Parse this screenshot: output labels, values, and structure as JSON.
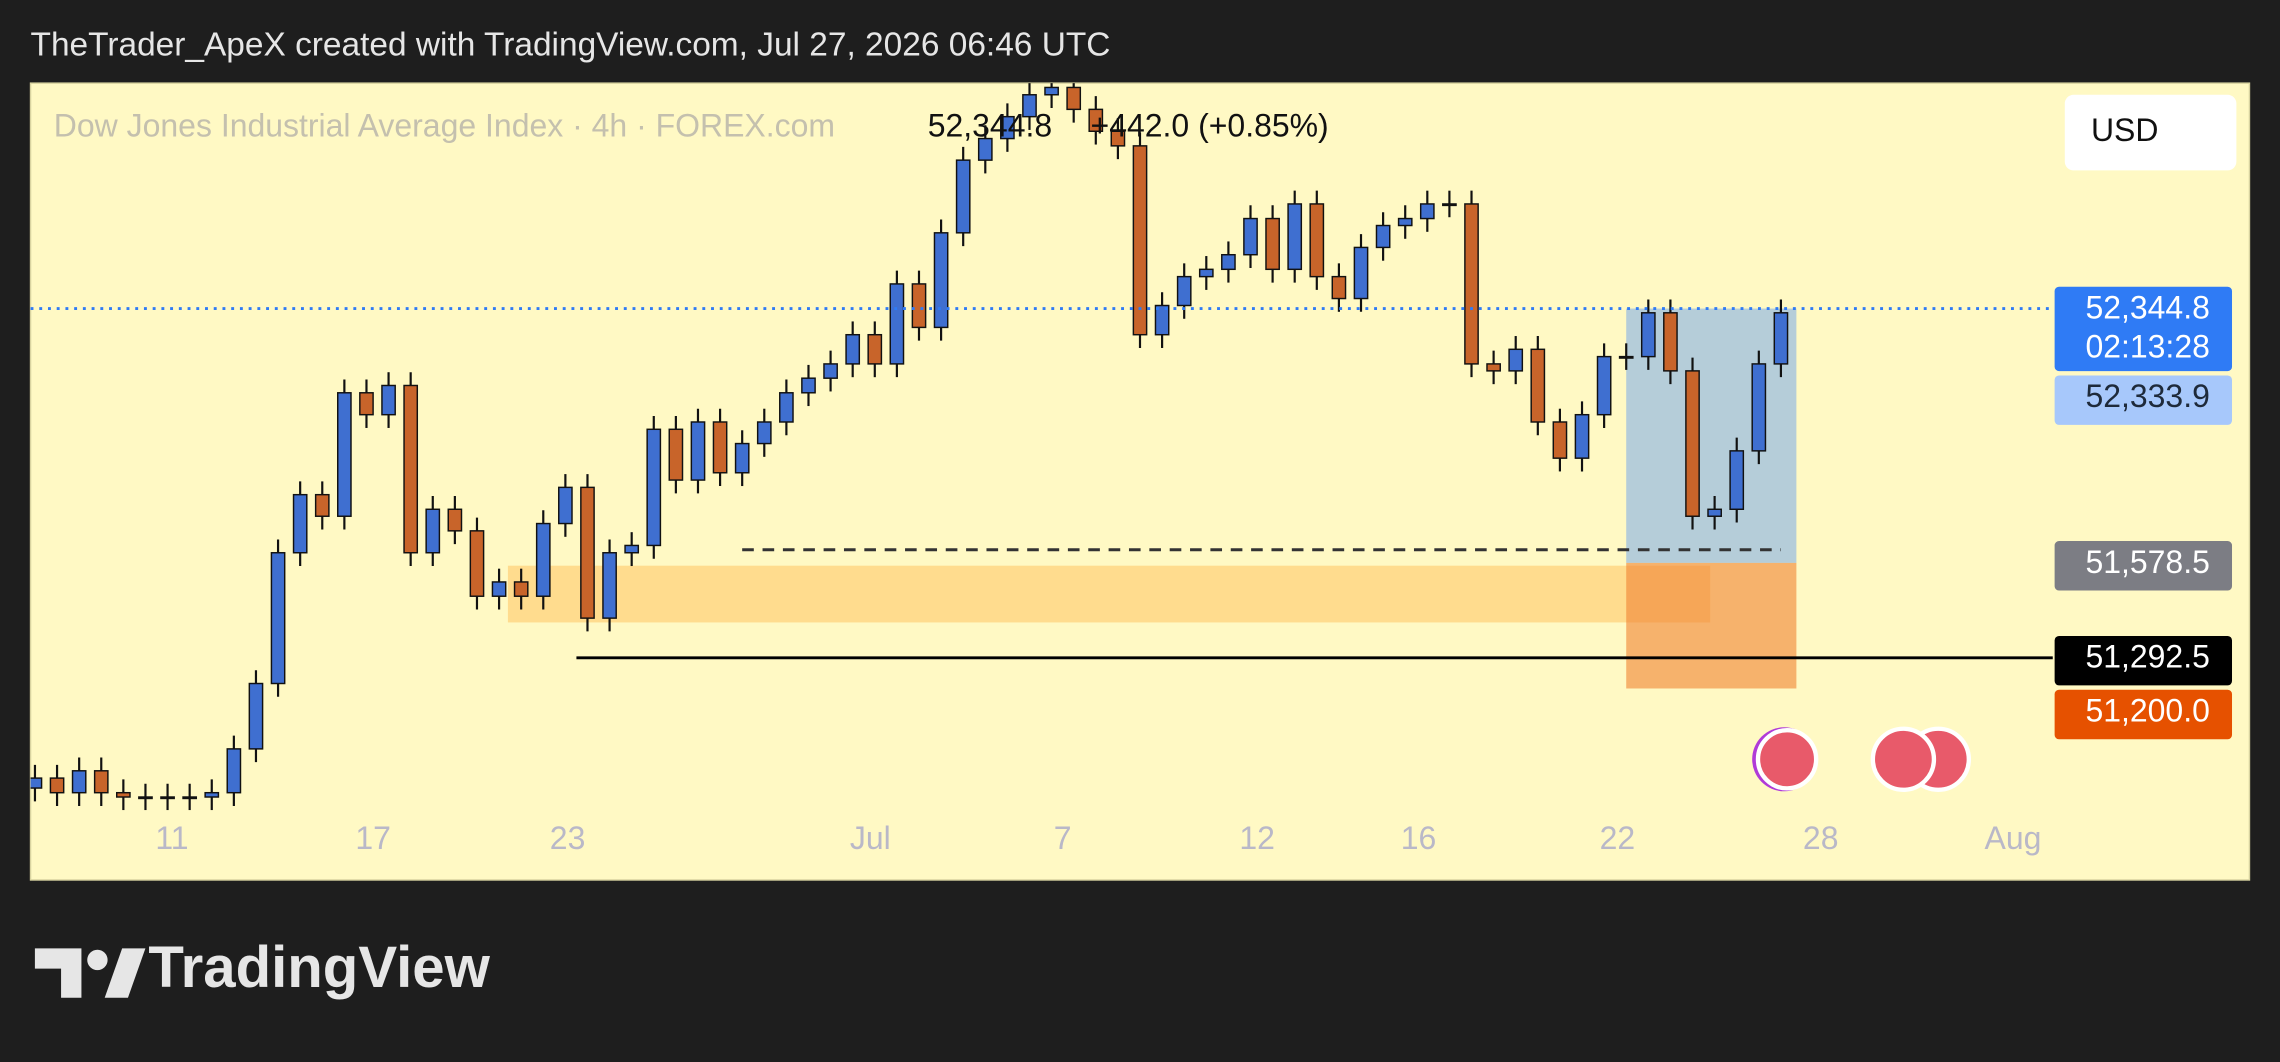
{
  "header": {
    "text": "TheTrader_ApeX created with TradingView.com, Jul 27, 2026 06:46 UTC"
  },
  "logo": "TradingView",
  "currency_button": "USD",
  "chart_data": {
    "type": "candlestick",
    "title": "Dow Jones Industrial Average Index · 4h · FOREX.com",
    "last_price_label": "52,344.8",
    "change_label": "+442.0 (+0.85%)",
    "open": [
      50900,
      50930,
      50886,
      50952,
      50886,
      50873,
      50873,
      50873,
      50873,
      50886,
      51018,
      51215,
      51609,
      51784,
      51719,
      52091,
      52025,
      52113,
      51609,
      51740,
      51675,
      51478,
      51521,
      51478,
      51697,
      51806,
      51412,
      51609,
      51631,
      51981,
      51828,
      52003,
      51850,
      51938,
      52003,
      52091,
      52135,
      52178,
      52266,
      52178,
      52419,
      52288,
      52573,
      52792,
      52857,
      52923,
      52989,
      53011,
      52945,
      52879,
      52835,
      52266,
      52354,
      52441,
      52463,
      52507,
      52616,
      52463,
      52660,
      52441,
      52375,
      52529,
      52595,
      52616,
      52660,
      52660,
      52178,
      52157,
      52222,
      52003,
      51894,
      52025,
      52200,
      52200,
      52332,
      52157,
      51719,
      51740,
      51916,
      52178
    ],
    "high": [
      50970,
      50970,
      50992,
      50992,
      50926,
      50913,
      50913,
      50913,
      50926,
      51058,
      51255,
      51649,
      51824,
      51824,
      52131,
      52131,
      52153,
      52153,
      51780,
      51780,
      51715,
      51561,
      51561,
      51737,
      51846,
      51846,
      51649,
      51671,
      52021,
      52021,
      52043,
      52043,
      51978,
      52043,
      52131,
      52175,
      52218,
      52306,
      52306,
      52459,
      52459,
      52613,
      52832,
      52897,
      52963,
      53029,
      53051,
      53051,
      52985,
      52919,
      52875,
      52394,
      52481,
      52503,
      52547,
      52656,
      52656,
      52700,
      52700,
      52481,
      52569,
      52635,
      52656,
      52700,
      52700,
      52700,
      52218,
      52262,
      52262,
      52043,
      52065,
      52240,
      52240,
      52372,
      52372,
      52197,
      51780,
      51956,
      52218,
      52372
    ],
    "low": [
      50860,
      50846,
      50846,
      50846,
      50833,
      50833,
      50833,
      50833,
      50833,
      50846,
      50978,
      51175,
      51569,
      51679,
      51679,
      51985,
      51985,
      51569,
      51569,
      51635,
      51438,
      51438,
      51438,
      51438,
      51657,
      51372,
      51372,
      51569,
      51591,
      51788,
      51788,
      51810,
      51810,
      51898,
      51963,
      52051,
      52095,
      52138,
      52138,
      52138,
      52248,
      52248,
      52533,
      52752,
      52817,
      52883,
      52949,
      52905,
      52839,
      52795,
      52226,
      52226,
      52314,
      52401,
      52423,
      52467,
      52423,
      52423,
      52401,
      52335,
      52335,
      52489,
      52555,
      52576,
      52620,
      52138,
      52117,
      52117,
      51963,
      51854,
      51854,
      51985,
      52160,
      52160,
      52117,
      51679,
      51679,
      51700,
      51876,
      52138
    ],
    "close": [
      50930,
      50886,
      50952,
      50886,
      50873,
      50873,
      50873,
      50873,
      50886,
      51018,
      51215,
      51609,
      51784,
      51719,
      52091,
      52025,
      52113,
      51609,
      51740,
      51675,
      51478,
      51521,
      51478,
      51697,
      51806,
      51412,
      51609,
      51631,
      51981,
      51828,
      52003,
      51850,
      51938,
      52003,
      52091,
      52135,
      52178,
      52266,
      52178,
      52419,
      52288,
      52573,
      52792,
      52857,
      52923,
      52989,
      53011,
      52945,
      52879,
      52835,
      52266,
      52354,
      52441,
      52463,
      52507,
      52616,
      52463,
      52660,
      52441,
      52375,
      52529,
      52595,
      52616,
      52660,
      52660,
      52178,
      52157,
      52222,
      52003,
      51894,
      52025,
      52200,
      52200,
      52332,
      52157,
      51719,
      51740,
      51916,
      52178,
      52332
    ],
    "up_color": "#3f6fd0",
    "down_color": "#c8642a",
    "xlim": [
      -0.2,
      100.2
    ],
    "xticks": [
      {
        "value": 6.2,
        "label": "11"
      },
      {
        "value": 15.3,
        "label": "17"
      },
      {
        "value": 24.1,
        "label": "23"
      },
      {
        "value": 37.8,
        "label": "Jul"
      },
      {
        "value": 46.5,
        "label": "7"
      },
      {
        "value": 55.3,
        "label": "12"
      },
      {
        "value": 62.6,
        "label": "16"
      },
      {
        "value": 71.6,
        "label": "22"
      },
      {
        "value": 80.8,
        "label": "28"
      },
      {
        "value": 89.5,
        "label": "Aug"
      }
    ],
    "ylim": [
      50623,
      53024
    ],
    "drawings": [
      {
        "shape": "rect",
        "x": [
          21.4,
          75.8
        ],
        "y": [
          51399,
          51570
        ],
        "color": "rgba(255,183,77,0.45)"
      },
      {
        "shape": "rect",
        "x": [
          72,
          79.7
        ],
        "y": [
          51200,
          51578.5
        ],
        "color": "rgba(240,130,50,0.6)"
      },
      {
        "shape": "rect",
        "x": [
          72,
          79.7
        ],
        "y": [
          51578.5,
          52344.8
        ],
        "color": "rgba(90,150,245,0.45)"
      },
      {
        "shape": "line",
        "x": [
          32,
          79
        ],
        "y": [
          51618,
          51618
        ],
        "color": "#333333",
        "style": "dashed"
      },
      {
        "shape": "line",
        "x": [
          24.5,
          91.3
        ],
        "y": [
          51292.5,
          51292.5
        ],
        "color": "#000000",
        "style": "solid"
      },
      {
        "shape": "line",
        "x": [
          -0.2,
          91.3
        ],
        "y": [
          52344.8,
          52344.8
        ],
        "color": "#2f7bf5",
        "style": "dotted"
      }
    ],
    "price_labels": [
      {
        "value": 52344.8,
        "label": "52,344.8",
        "sublabel": "02:13:28",
        "color": "#2f7bf5",
        "text_color": "#ffffff"
      },
      {
        "value": 52333.9,
        "label": "52,333.9",
        "color": "#a7c8fb",
        "text_color": "#1e2a3a"
      },
      {
        "value": 51578.5,
        "label": "51,578.5",
        "color": "#7c7d84",
        "text_color": "#ffffff"
      },
      {
        "value": 51292.5,
        "label": "51,292.5",
        "color": "#000000",
        "text_color": "#ffffff"
      },
      {
        "value": 51200.0,
        "label": "51,200.0",
        "color": "#e65100",
        "text_color": "#ffffff"
      }
    ]
  }
}
